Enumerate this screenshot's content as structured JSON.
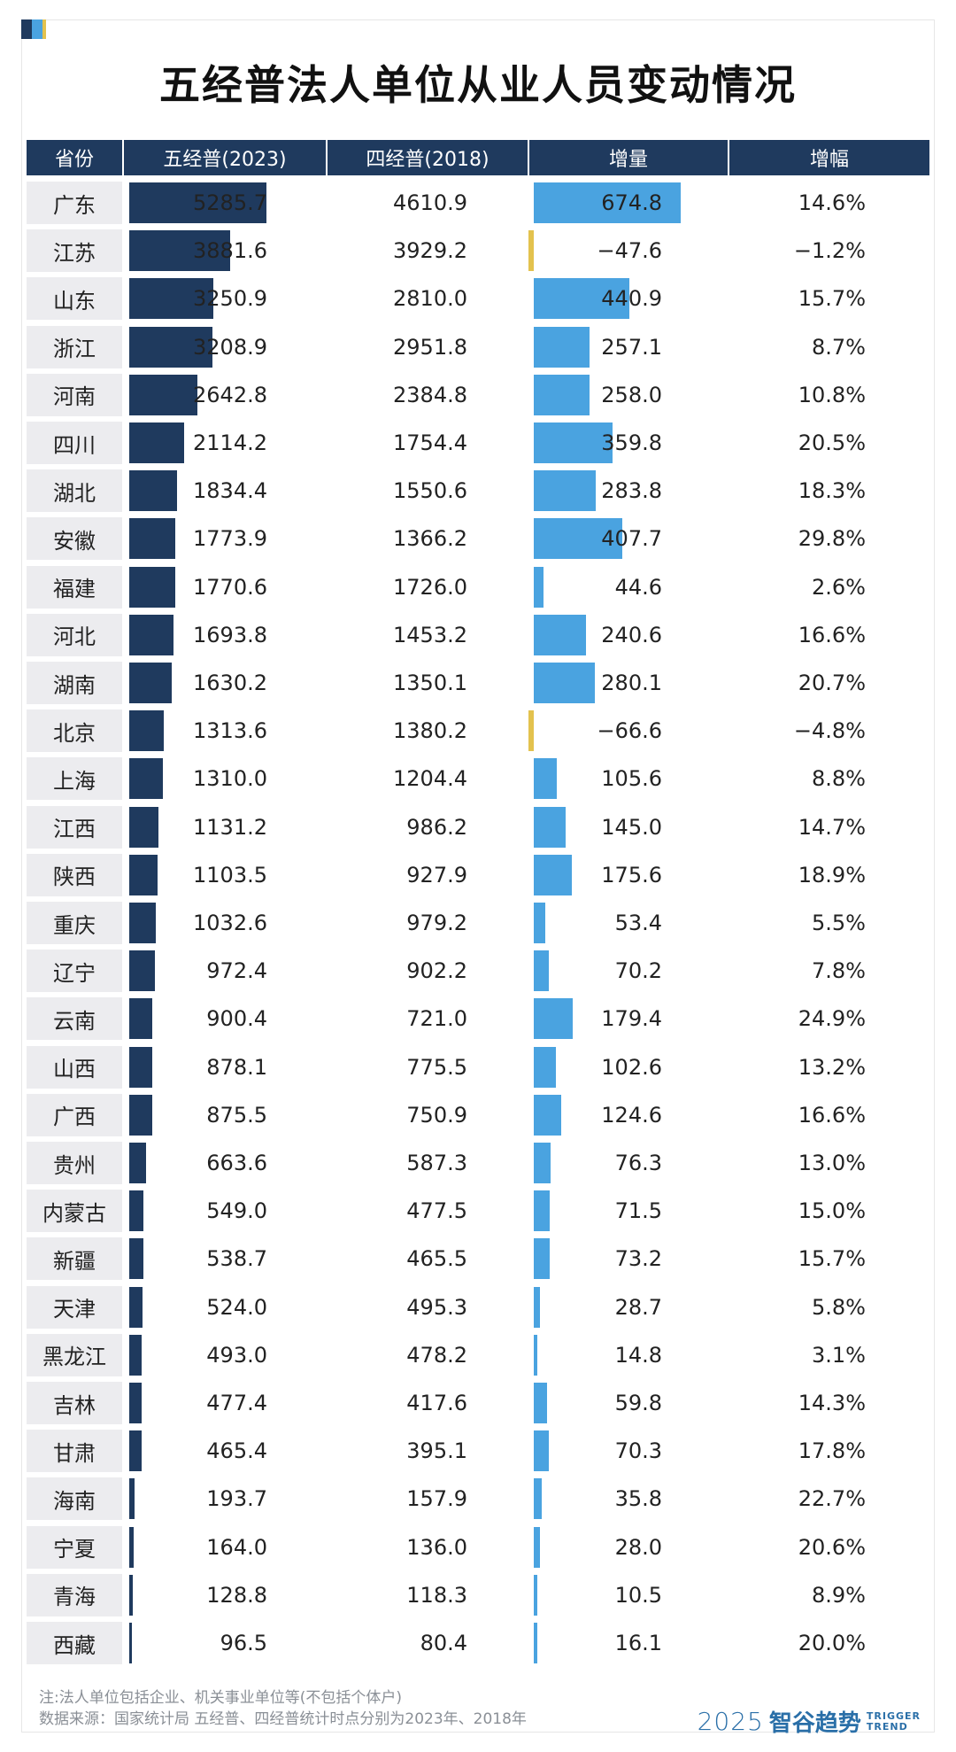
{
  "title": "五经普法人单位从业人员变动情况",
  "colors": {
    "header_bg": "#1f3a5e",
    "bar_2023": "#1f3a5e",
    "bar_increase_positive": "#4aa3e0",
    "bar_increase_negative": "#e3c24e",
    "province_cell_bg": "#ececef",
    "corner_accents": [
      "#1f3a5e",
      "#4aa3e0",
      "#e3c24e"
    ]
  },
  "chart_data": {
    "type": "table",
    "title": "五经普法人单位从业人员变动情况",
    "columns": [
      "省份",
      "五经普(2023)",
      "四经普(2018)",
      "增量",
      "增幅"
    ],
    "rows": [
      {
        "province": "广东",
        "v2023": "5285.7",
        "v2018": "4610.9",
        "inc": "674.8",
        "rate": "14.6%"
      },
      {
        "province": "江苏",
        "v2023": "3881.6",
        "v2018": "3929.2",
        "inc": "−47.6",
        "rate": "−1.2%"
      },
      {
        "province": "山东",
        "v2023": "3250.9",
        "v2018": "2810.0",
        "inc": "440.9",
        "rate": "15.7%"
      },
      {
        "province": "浙江",
        "v2023": "3208.9",
        "v2018": "2951.8",
        "inc": "257.1",
        "rate": "8.7%"
      },
      {
        "province": "河南",
        "v2023": "2642.8",
        "v2018": "2384.8",
        "inc": "258.0",
        "rate": "10.8%"
      },
      {
        "province": "四川",
        "v2023": "2114.2",
        "v2018": "1754.4",
        "inc": "359.8",
        "rate": "20.5%"
      },
      {
        "province": "湖北",
        "v2023": "1834.4",
        "v2018": "1550.6",
        "inc": "283.8",
        "rate": "18.3%"
      },
      {
        "province": "安徽",
        "v2023": "1773.9",
        "v2018": "1366.2",
        "inc": "407.7",
        "rate": "29.8%"
      },
      {
        "province": "福建",
        "v2023": "1770.6",
        "v2018": "1726.0",
        "inc": "44.6",
        "rate": "2.6%"
      },
      {
        "province": "河北",
        "v2023": "1693.8",
        "v2018": "1453.2",
        "inc": "240.6",
        "rate": "16.6%"
      },
      {
        "province": "湖南",
        "v2023": "1630.2",
        "v2018": "1350.1",
        "inc": "280.1",
        "rate": "20.7%"
      },
      {
        "province": "北京",
        "v2023": "1313.6",
        "v2018": "1380.2",
        "inc": "−66.6",
        "rate": "−4.8%"
      },
      {
        "province": "上海",
        "v2023": "1310.0",
        "v2018": "1204.4",
        "inc": "105.6",
        "rate": "8.8%"
      },
      {
        "province": "江西",
        "v2023": "1131.2",
        "v2018": "986.2",
        "inc": "145.0",
        "rate": "14.7%"
      },
      {
        "province": "陕西",
        "v2023": "1103.5",
        "v2018": "927.9",
        "inc": "175.6",
        "rate": "18.9%"
      },
      {
        "province": "重庆",
        "v2023": "1032.6",
        "v2018": "979.2",
        "inc": "53.4",
        "rate": "5.5%"
      },
      {
        "province": "辽宁",
        "v2023": "972.4",
        "v2018": "902.2",
        "inc": "70.2",
        "rate": "7.8%"
      },
      {
        "province": "云南",
        "v2023": "900.4",
        "v2018": "721.0",
        "inc": "179.4",
        "rate": "24.9%"
      },
      {
        "province": "山西",
        "v2023": "878.1",
        "v2018": "775.5",
        "inc": "102.6",
        "rate": "13.2%"
      },
      {
        "province": "广西",
        "v2023": "875.5",
        "v2018": "750.9",
        "inc": "124.6",
        "rate": "16.6%"
      },
      {
        "province": "贵州",
        "v2023": "663.6",
        "v2018": "587.3",
        "inc": "76.3",
        "rate": "13.0%"
      },
      {
        "province": "内蒙古",
        "v2023": "549.0",
        "v2018": "477.5",
        "inc": "71.5",
        "rate": "15.0%"
      },
      {
        "province": "新疆",
        "v2023": "538.7",
        "v2018": "465.5",
        "inc": "73.2",
        "rate": "15.7%"
      },
      {
        "province": "天津",
        "v2023": "524.0",
        "v2018": "495.3",
        "inc": "28.7",
        "rate": "5.8%"
      },
      {
        "province": "黑龙江",
        "v2023": "493.0",
        "v2018": "478.2",
        "inc": "14.8",
        "rate": "3.1%"
      },
      {
        "province": "吉林",
        "v2023": "477.4",
        "v2018": "417.6",
        "inc": "59.8",
        "rate": "14.3%"
      },
      {
        "province": "甘肃",
        "v2023": "465.4",
        "v2018": "395.1",
        "inc": "70.3",
        "rate": "17.8%"
      },
      {
        "province": "海南",
        "v2023": "193.7",
        "v2018": "157.9",
        "inc": "35.8",
        "rate": "22.7%"
      },
      {
        "province": "宁夏",
        "v2023": "164.0",
        "v2018": "136.0",
        "inc": "28.0",
        "rate": "20.6%"
      },
      {
        "province": "青海",
        "v2023": "128.8",
        "v2018": "118.3",
        "inc": "10.5",
        "rate": "8.9%"
      },
      {
        "province": "西藏",
        "v2023": "96.5",
        "v2018": "80.4",
        "inc": "16.1",
        "rate": "20.0%"
      }
    ]
  },
  "footer": {
    "note": "注:法人单位包括企业、机关事业单位等(不包括个体户)",
    "source": "数据来源：国家统计局 五经普、四经普统计时点分别为2023年、2018年"
  },
  "logo": {
    "year": "2025",
    "name_cn": "智谷趋势",
    "name_en_1": "TRIGGER",
    "name_en_2": "TREND"
  }
}
